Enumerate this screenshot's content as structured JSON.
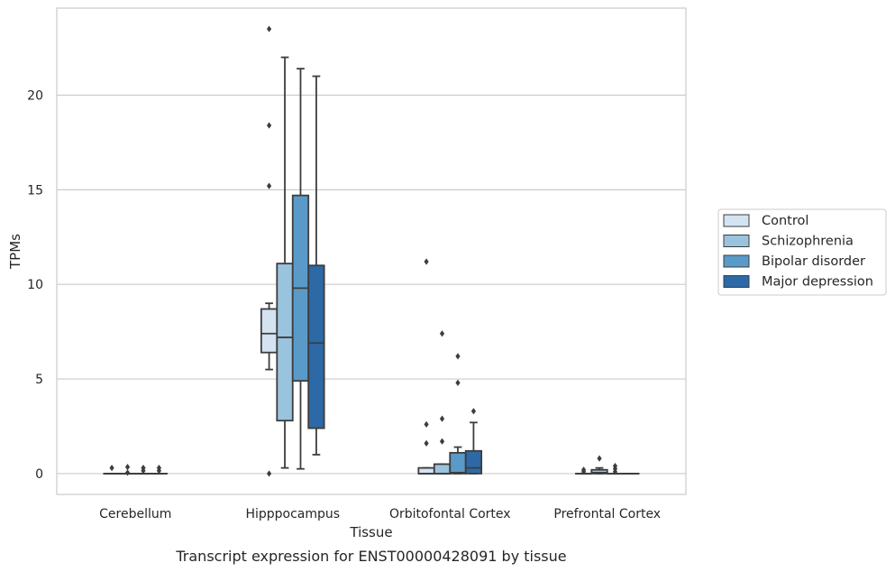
{
  "chart_data": {
    "type": "box",
    "title": "Transcript expression for ENST00000428091 by tissue",
    "xlabel": "Tissue",
    "ylabel": "TPMs",
    "ylim": [
      -1.1,
      24.6
    ],
    "yticks": [
      0,
      5,
      10,
      15,
      20
    ],
    "grid": true,
    "legend_position": "right",
    "categories": [
      "Cerebellum",
      "Hipppocampus",
      "Orbitofontal Cortex",
      "Prefrontal Cortex"
    ],
    "series": [
      {
        "name": "Control",
        "color": "#d3e3f2",
        "boxes": [
          {
            "whislo": 0.0,
            "q1": 0.0,
            "med": 0.0,
            "q3": 0.0,
            "whishi": 0.0,
            "fliers": [
              0.3
            ]
          },
          {
            "whislo": 5.5,
            "q1": 6.4,
            "med": 7.4,
            "q3": 8.7,
            "whishi": 9.0,
            "fliers": [
              23.5,
              18.4,
              15.2,
              0.0
            ]
          },
          {
            "whislo": 0.0,
            "q1": 0.0,
            "med": 0.0,
            "q3": 0.3,
            "whishi": 0.3,
            "fliers": [
              11.2,
              2.6,
              1.6
            ]
          },
          {
            "whislo": 0.0,
            "q1": 0.0,
            "med": 0.0,
            "q3": 0.0,
            "whishi": 0.0,
            "fliers": [
              0.2,
              0.1
            ]
          }
        ]
      },
      {
        "name": "Schizophrenia",
        "color": "#9ac3de",
        "boxes": [
          {
            "whislo": 0.0,
            "q1": 0.0,
            "med": 0.0,
            "q3": 0.0,
            "whishi": 0.0,
            "fliers": [
              0.35,
              0.05
            ]
          },
          {
            "whislo": 0.3,
            "q1": 2.8,
            "med": 7.2,
            "q3": 11.1,
            "whishi": 22.0,
            "fliers": []
          },
          {
            "whislo": 0.0,
            "q1": 0.0,
            "med": 0.0,
            "q3": 0.5,
            "whishi": 0.5,
            "fliers": [
              7.4,
              2.9,
              1.7
            ]
          },
          {
            "whislo": 0.0,
            "q1": 0.0,
            "med": 0.05,
            "q3": 0.2,
            "whishi": 0.3,
            "fliers": [
              0.8
            ]
          }
        ]
      },
      {
        "name": "Bipolar disorder",
        "color": "#5a9ac8",
        "boxes": [
          {
            "whislo": 0.0,
            "q1": 0.0,
            "med": 0.0,
            "q3": 0.0,
            "whishi": 0.0,
            "fliers": [
              0.3,
              0.15
            ]
          },
          {
            "whislo": 0.25,
            "q1": 4.9,
            "med": 9.8,
            "q3": 14.7,
            "whishi": 21.4,
            "fliers": []
          },
          {
            "whislo": 0.0,
            "q1": 0.0,
            "med": 0.05,
            "q3": 1.1,
            "whishi": 1.4,
            "fliers": [
              6.2,
              4.8
            ]
          },
          {
            "whislo": 0.0,
            "q1": 0.0,
            "med": 0.0,
            "q3": 0.0,
            "whishi": 0.0,
            "fliers": [
              0.4,
              0.25,
              0.1
            ]
          }
        ]
      },
      {
        "name": "Major depression",
        "color": "#2d69a6",
        "boxes": [
          {
            "whislo": 0.0,
            "q1": 0.0,
            "med": 0.0,
            "q3": 0.0,
            "whishi": 0.0,
            "fliers": [
              0.3,
              0.15
            ]
          },
          {
            "whislo": 1.0,
            "q1": 2.4,
            "med": 6.9,
            "q3": 11.0,
            "whishi": 21.0,
            "fliers": []
          },
          {
            "whislo": 0.0,
            "q1": 0.0,
            "med": 0.3,
            "q3": 1.2,
            "whishi": 2.7,
            "fliers": [
              3.3
            ]
          },
          {
            "whislo": 0.0,
            "q1": 0.0,
            "med": 0.0,
            "q3": 0.0,
            "whishi": 0.0,
            "fliers": []
          }
        ]
      }
    ]
  }
}
